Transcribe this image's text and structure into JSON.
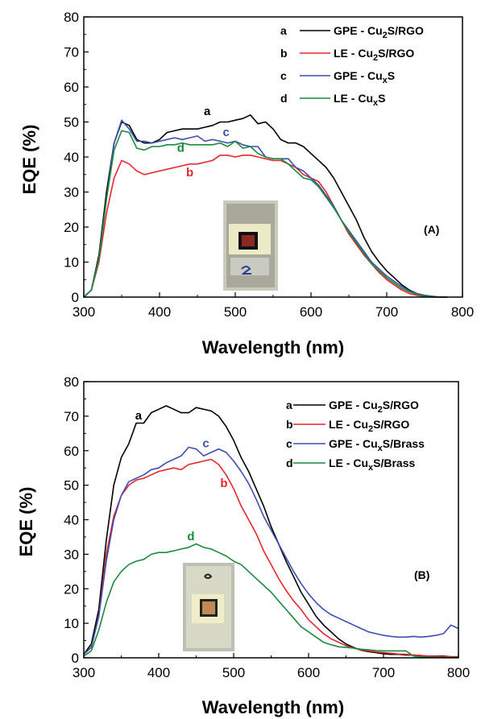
{
  "chart_data": [
    {
      "type": "line",
      "panel_label": "(A)",
      "xlabel": "Wavelength (nm)",
      "ylabel": "EQE (%)",
      "xlim": [
        300,
        800
      ],
      "ylim": [
        0,
        80
      ],
      "xticks": [
        "300",
        "400",
        "500",
        "600",
        "700",
        "800"
      ],
      "yticks": [
        "0",
        "10",
        "20",
        "30",
        "40",
        "50",
        "60",
        "70",
        "80"
      ],
      "legend_position": "top-right",
      "x": [
        300,
        310,
        320,
        330,
        340,
        350,
        360,
        370,
        380,
        390,
        400,
        410,
        420,
        430,
        440,
        450,
        460,
        470,
        480,
        490,
        500,
        510,
        520,
        530,
        540,
        550,
        560,
        570,
        580,
        590,
        600,
        610,
        620,
        630,
        640,
        650,
        660,
        670,
        680,
        690,
        700,
        710,
        720,
        730,
        740,
        750,
        760,
        770,
        780
      ],
      "series": [
        {
          "letter": "a",
          "legend_prefix": "GPE - Cu",
          "legend_sub": "2",
          "legend_suffix": "S/RGO",
          "color": "#000000",
          "values": [
            0,
            2,
            12,
            30,
            44,
            50,
            49,
            45,
            44,
            44,
            45,
            47,
            47.5,
            48,
            48,
            48,
            48.5,
            49,
            50,
            50,
            50.5,
            51,
            52,
            49.5,
            50,
            48,
            45,
            44,
            44,
            43,
            41,
            39,
            37,
            34,
            30,
            26,
            22,
            17,
            13,
            10,
            7.5,
            5.5,
            3.5,
            2,
            1,
            0.5,
            0.2,
            0,
            0
          ]
        },
        {
          "letter": "b",
          "legend_prefix": "LE - Cu",
          "legend_sub": "2",
          "legend_suffix": "S/RGO",
          "color": "#e8262d",
          "values": [
            0,
            2,
            10,
            24,
            34,
            39,
            38,
            36,
            35,
            35.5,
            36,
            36.5,
            37,
            37.5,
            38,
            38,
            38.5,
            39,
            40.5,
            40.5,
            40,
            40.5,
            40.5,
            40,
            39.5,
            39,
            39,
            38,
            37,
            35,
            34,
            33,
            30,
            26,
            22,
            18,
            15,
            12,
            9.5,
            7,
            5,
            3.5,
            2,
            1,
            0.5,
            0.2,
            0,
            0,
            0
          ]
        },
        {
          "letter": "c",
          "legend_prefix": "GPE - Cu",
          "legend_sub": "x",
          "legend_suffix": "S",
          "color": "#3c4fb0",
          "values": [
            0,
            2,
            11,
            28,
            44,
            50.5,
            48,
            44.5,
            44.5,
            44,
            44.5,
            45,
            45.5,
            45,
            45.5,
            46,
            44.5,
            45,
            44.5,
            44,
            44.5,
            43.5,
            43,
            43,
            40,
            39.5,
            39.5,
            39.5,
            37,
            36,
            34,
            32,
            29,
            26,
            22,
            19,
            16,
            13,
            10,
            8,
            6,
            4.5,
            3,
            1.8,
            1,
            0.5,
            0.2,
            0,
            0
          ]
        },
        {
          "letter": "d",
          "legend_prefix": "LE - Cu",
          "legend_sub": "x",
          "legend_suffix": "S",
          "color": "#1a8a3c",
          "values": [
            0,
            2,
            11,
            28,
            42,
            47.5,
            47,
            42.5,
            42,
            43,
            43,
            43.5,
            43.5,
            44,
            43.5,
            43.5,
            43.5,
            43.5,
            44,
            43,
            44.5,
            42.5,
            43,
            41,
            40,
            39.5,
            39.5,
            38,
            36,
            34,
            33.5,
            31.5,
            28.5,
            25.5,
            22,
            18.5,
            15.5,
            12.5,
            9.5,
            7.5,
            5.5,
            4,
            2.5,
            1.5,
            0.8,
            0.3,
            0.1,
            0,
            0
          ]
        }
      ],
      "curve_labels": [
        {
          "text": "a",
          "series": 0,
          "x": 463,
          "y": 52
        },
        {
          "text": "b",
          "series": 1,
          "x": 440,
          "y": 34.5
        },
        {
          "text": "c",
          "series": 2,
          "x": 488,
          "y": 46
        },
        {
          "text": "d",
          "series": 3,
          "x": 428,
          "y": 41.5
        }
      ]
    },
    {
      "type": "line",
      "panel_label": "(B)",
      "xlabel": "Wavelength (nm)",
      "ylabel": "EQE (%)",
      "xlim": [
        300,
        800
      ],
      "ylim": [
        0,
        80
      ],
      "xticks": [
        "300",
        "400",
        "500",
        "600",
        "700",
        "800"
      ],
      "yticks": [
        "0",
        "10",
        "20",
        "30",
        "40",
        "50",
        "60",
        "70",
        "80"
      ],
      "legend_position": "top-right",
      "x": [
        300,
        310,
        320,
        330,
        340,
        350,
        360,
        370,
        380,
        390,
        400,
        410,
        420,
        430,
        440,
        450,
        460,
        470,
        480,
        490,
        500,
        510,
        520,
        530,
        540,
        550,
        560,
        570,
        580,
        590,
        600,
        610,
        620,
        630,
        640,
        650,
        660,
        670,
        680,
        690,
        700,
        710,
        720,
        730,
        740,
        750,
        760,
        770,
        780,
        790,
        800
      ],
      "series": [
        {
          "letter": "a",
          "legend_prefix": "GPE - Cu",
          "legend_sub": "2",
          "legend_suffix": "S/RGO",
          "color": "#000000",
          "values": [
            1,
            4,
            14,
            34,
            50,
            58,
            62,
            68,
            68,
            71,
            72,
            73,
            72,
            71,
            71,
            72.5,
            72,
            71.5,
            70,
            67,
            63,
            58,
            54,
            49,
            44,
            38,
            33,
            28,
            23.5,
            19,
            15.5,
            12,
            9.5,
            7.5,
            5.5,
            4,
            3,
            2.2,
            1.8,
            1.5,
            1.2,
            1,
            1,
            0.8,
            0.8,
            0.6,
            0.5,
            0.5,
            0.5,
            0.3,
            0.3
          ]
        },
        {
          "letter": "b",
          "legend_prefix": "LE - Cu",
          "legend_sub": "2",
          "legend_suffix": "S/RGO",
          "color": "#e8262d",
          "values": [
            1,
            3,
            12,
            30,
            41,
            47,
            50,
            51.5,
            52,
            53,
            54,
            54.5,
            55,
            54.5,
            56,
            56.5,
            57,
            57.5,
            56,
            53,
            49,
            44,
            40,
            36,
            31,
            27,
            23,
            19.5,
            16.5,
            14,
            11,
            9,
            7,
            5.5,
            4.5,
            3.5,
            2.8,
            2.3,
            2,
            1.7,
            1.5,
            1.3,
            1.1,
            1,
            0.8,
            0.7,
            0.5,
            0.4,
            0.3,
            0.3,
            0.2
          ]
        },
        {
          "letter": "c",
          "legend_prefix": "GPE - Cu",
          "legend_sub": "x",
          "legend_suffix": "S/Brass",
          "color": "#3c4fb0",
          "values": [
            1,
            3,
            12,
            28,
            40,
            47,
            51,
            52,
            53,
            54.5,
            55,
            56.5,
            57.5,
            58.5,
            61,
            60.5,
            58.5,
            59.5,
            60.5,
            59.5,
            57,
            54,
            50.5,
            46,
            41,
            37,
            33,
            29,
            25,
            21.5,
            18.5,
            16,
            14,
            12.5,
            11.5,
            10.5,
            9.5,
            8.5,
            7.5,
            7,
            6.5,
            6.2,
            6,
            6,
            6.2,
            6,
            6.2,
            6.5,
            7,
            9.5,
            8.5
          ]
        },
        {
          "letter": "d",
          "legend_prefix": "LE - Cu",
          "legend_sub": "x",
          "legend_suffix": "S/Brass",
          "color": "#1a8a3c",
          "values": [
            0.5,
            2,
            8,
            16,
            22,
            25,
            27,
            28,
            28.5,
            30,
            30.5,
            30.5,
            31,
            31.5,
            32,
            33,
            32,
            31.5,
            30.5,
            29.5,
            28,
            27,
            25,
            23,
            21,
            19,
            16.5,
            14,
            11.5,
            9,
            7.5,
            6,
            4.5,
            3.8,
            3.2,
            3,
            2.8,
            2.5,
            2.3,
            2.1,
            2,
            2,
            2,
            2,
            0.5,
            0.3,
            0.2,
            0.1,
            0.1,
            0.1,
            0.1
          ]
        }
      ],
      "curve_labels": [
        {
          "text": "a",
          "series": 0,
          "x": 373,
          "y": 69
        },
        {
          "text": "b",
          "series": 1,
          "x": 487,
          "y": 49.5
        },
        {
          "text": "c",
          "series": 2,
          "x": 463,
          "y": 61
        },
        {
          "text": "d",
          "series": 3,
          "x": 443,
          "y": 34
        }
      ]
    }
  ]
}
